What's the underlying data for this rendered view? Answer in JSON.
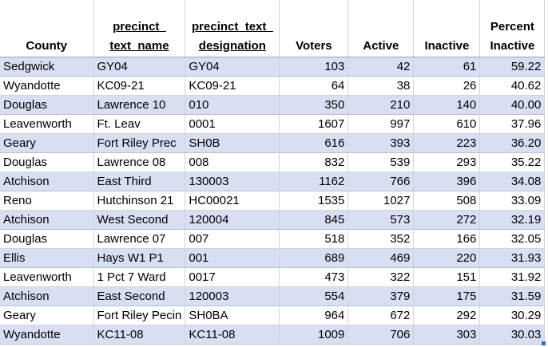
{
  "headers": [
    {
      "lines": [
        "County"
      ],
      "underline": false
    },
    {
      "lines": [
        "precinct_",
        "text_name"
      ],
      "underline": true
    },
    {
      "lines": [
        "precinct_text_",
        "designation"
      ],
      "underline": true
    },
    {
      "lines": [
        "Voters"
      ],
      "underline": false
    },
    {
      "lines": [
        "Active"
      ],
      "underline": false
    },
    {
      "lines": [
        "Inactive"
      ],
      "underline": false
    },
    {
      "lines": [
        "Percent",
        "Inactive"
      ],
      "underline": false
    }
  ],
  "rows": [
    [
      "Sedgwick",
      "GY04",
      "GY04",
      "103",
      "42",
      "61",
      "59.22"
    ],
    [
      "Wyandotte",
      "KC09-21",
      "KC09-21",
      "64",
      "38",
      "26",
      "40.62"
    ],
    [
      "Douglas",
      "Lawrence 10",
      "010",
      "350",
      "210",
      "140",
      "40.00"
    ],
    [
      "Leavenworth",
      "Ft. Leav",
      "0001",
      "1607",
      "997",
      "610",
      "37.96"
    ],
    [
      "Geary",
      "Fort Riley Prec",
      "SH0B",
      "616",
      "393",
      "223",
      "36.20"
    ],
    [
      "Douglas",
      "Lawrence 08",
      "008",
      "832",
      "539",
      "293",
      "35.22"
    ],
    [
      "Atchison",
      "East Third",
      "130003",
      "1162",
      "766",
      "396",
      "34.08"
    ],
    [
      "Reno",
      "Hutchinson 21",
      "HC00021",
      "1535",
      "1027",
      "508",
      "33.09"
    ],
    [
      "Atchison",
      "West Second",
      "120004",
      "845",
      "573",
      "272",
      "32.19"
    ],
    [
      "Douglas",
      "Lawrence 07",
      "007",
      "518",
      "352",
      "166",
      "32.05"
    ],
    [
      "Ellis",
      "Hays W1 P1",
      "001",
      "689",
      "469",
      "220",
      "31.93"
    ],
    [
      "Leavenworth",
      "1 Pct 7 Ward",
      "0017",
      "473",
      "322",
      "151",
      "31.92"
    ],
    [
      "Atchison",
      "East Second",
      "120003",
      "554",
      "379",
      "175",
      "31.59"
    ],
    [
      "Geary",
      "Fort Riley Pecin",
      "SH0BA",
      "964",
      "672",
      "292",
      "30.29"
    ],
    [
      "Wyandotte",
      "KC11-08",
      "KC11-08",
      "1009",
      "706",
      "303",
      "30.03"
    ]
  ]
}
